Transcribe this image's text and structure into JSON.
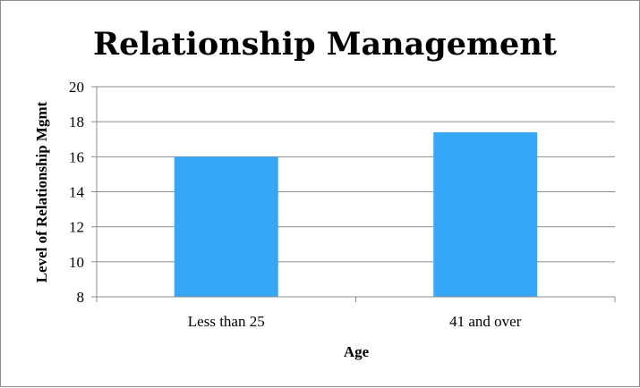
{
  "chart_data": {
    "type": "bar",
    "title": "Relationship Management",
    "xlabel": "Age",
    "ylabel": "Level of Relationship Mgmt",
    "categories": [
      "Less than 25",
      "41 and over"
    ],
    "values": [
      16.0,
      17.4
    ],
    "ylim": [
      8,
      20
    ],
    "yticks": [
      8,
      10,
      12,
      14,
      16,
      18,
      20
    ],
    "grid": true,
    "legend": "none",
    "bar_color": "#36a6f7",
    "grid_color": "#8c8c8c"
  }
}
